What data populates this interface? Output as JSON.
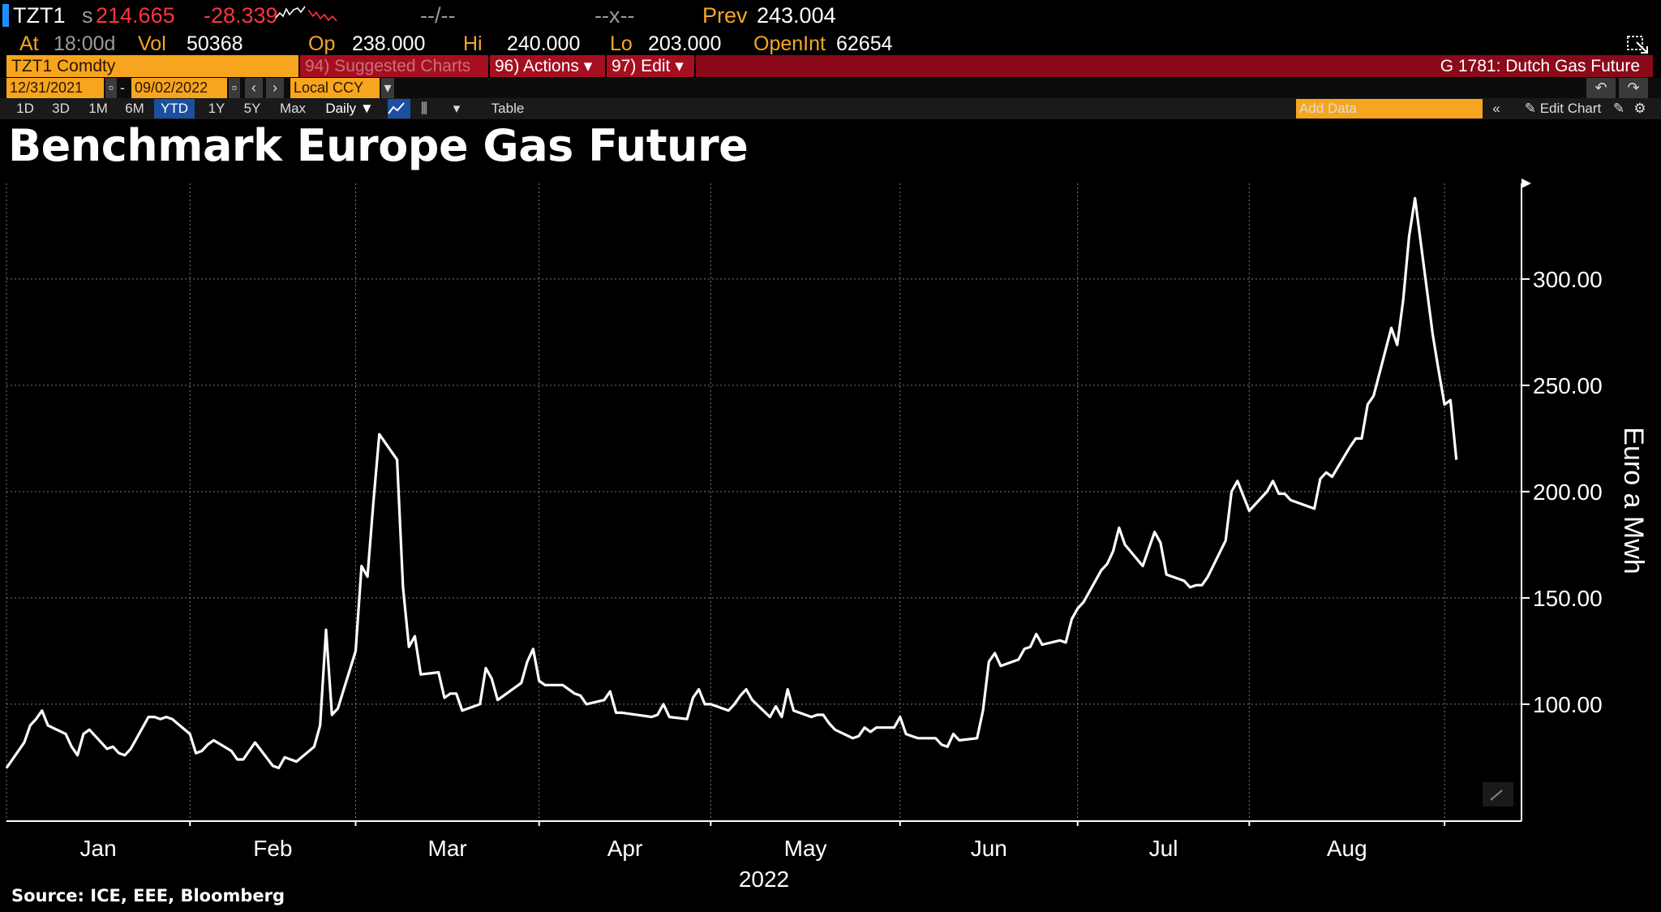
{
  "quote": {
    "ticker": "TZT1",
    "price_prefix": "s",
    "price": "214.665",
    "change": "-28.339",
    "bid_ask": "--/--",
    "size": "--x--",
    "prev_label": "Prev",
    "prev": "243.004",
    "at_label": "At",
    "time": "18:00d",
    "vol_label": "Vol",
    "vol": "50368",
    "op_label": "Op",
    "op": "238.000",
    "hi_label": "Hi",
    "hi": "240.000",
    "lo_label": "Lo",
    "lo": "203.000",
    "oi_label": "OpenInt",
    "oi": "62654"
  },
  "toolbar": {
    "security": "TZT1 Comdty",
    "suggested": "94) Suggested Charts",
    "actions": "96) Actions ▾",
    "edit": "97) Edit ▾",
    "function_title": "G 1781: Dutch Gas Future",
    "start_date": "12/31/2021",
    "date_sep": "-",
    "end_date": "09/02/2022",
    "currency": "Local CCY",
    "periods": [
      "1D",
      "3D",
      "1M",
      "6M",
      "YTD",
      "1Y",
      "5Y",
      "Max"
    ],
    "selected_period": "YTD",
    "frequency": "Daily ▼",
    "table": "Table",
    "add_data_placeholder": "Add Data",
    "edit_chart": "Edit Chart"
  },
  "chart_data": {
    "type": "line",
    "title": "Benchmark Europe Gas Future",
    "ylabel": "Euro a Mwh",
    "xlabel": "2022",
    "source": "Source: ICE, EEE, Bloomberg",
    "ylim": [
      45,
      345
    ],
    "yticks": [
      "100.00",
      "150.00",
      "200.00",
      "250.00",
      "300.00"
    ],
    "ytick_values": [
      100,
      150,
      200,
      250,
      300
    ],
    "month_labels": [
      "Jan",
      "Feb",
      "Mar",
      "Apr",
      "May",
      "Jun",
      "Jul",
      "Aug"
    ],
    "grid": true,
    "series": [
      {
        "color": "#ffffff",
        "x": [
          "2021-12-31",
          "2022-01-03",
          "2022-01-04",
          "2022-01-05",
          "2022-01-06",
          "2022-01-07",
          "2022-01-10",
          "2022-01-11",
          "2022-01-12",
          "2022-01-13",
          "2022-01-14",
          "2022-01-17",
          "2022-01-18",
          "2022-01-19",
          "2022-01-20",
          "2022-01-21",
          "2022-01-24",
          "2022-01-25",
          "2022-01-26",
          "2022-01-27",
          "2022-01-28",
          "2022-01-31",
          "2022-02-01",
          "2022-02-02",
          "2022-02-03",
          "2022-02-04",
          "2022-02-07",
          "2022-02-08",
          "2022-02-09",
          "2022-02-10",
          "2022-02-11",
          "2022-02-14",
          "2022-02-15",
          "2022-02-16",
          "2022-02-17",
          "2022-02-18",
          "2022-02-21",
          "2022-02-22",
          "2022-02-23",
          "2022-02-24",
          "2022-02-25",
          "2022-02-28",
          "2022-03-01",
          "2022-03-02",
          "2022-03-03",
          "2022-03-04",
          "2022-03-07",
          "2022-03-08",
          "2022-03-09",
          "2022-03-10",
          "2022-03-11",
          "2022-03-14",
          "2022-03-15",
          "2022-03-16",
          "2022-03-17",
          "2022-03-18",
          "2022-03-21",
          "2022-03-22",
          "2022-03-23",
          "2022-03-24",
          "2022-03-25",
          "2022-03-28",
          "2022-03-29",
          "2022-03-30",
          "2022-03-31",
          "2022-04-01",
          "2022-04-04",
          "2022-04-05",
          "2022-04-06",
          "2022-04-07",
          "2022-04-08",
          "2022-04-11",
          "2022-04-12",
          "2022-04-13",
          "2022-04-14",
          "2022-04-19",
          "2022-04-20",
          "2022-04-21",
          "2022-04-22",
          "2022-04-25",
          "2022-04-26",
          "2022-04-27",
          "2022-04-28",
          "2022-04-29",
          "2022-05-02",
          "2022-05-03",
          "2022-05-04",
          "2022-05-05",
          "2022-05-06",
          "2022-05-09",
          "2022-05-10",
          "2022-05-11",
          "2022-05-12",
          "2022-05-13",
          "2022-05-16",
          "2022-05-17",
          "2022-05-18",
          "2022-05-19",
          "2022-05-20",
          "2022-05-23",
          "2022-05-24",
          "2022-05-25",
          "2022-05-26",
          "2022-05-27",
          "2022-05-30",
          "2022-05-31",
          "2022-06-01",
          "2022-06-02",
          "2022-06-03",
          "2022-06-06",
          "2022-06-07",
          "2022-06-08",
          "2022-06-09",
          "2022-06-10",
          "2022-06-13",
          "2022-06-14",
          "2022-06-15",
          "2022-06-16",
          "2022-06-17",
          "2022-06-20",
          "2022-06-21",
          "2022-06-22",
          "2022-06-23",
          "2022-06-24",
          "2022-06-27",
          "2022-06-28",
          "2022-06-29",
          "2022-06-30",
          "2022-07-01",
          "2022-07-04",
          "2022-07-05",
          "2022-07-06",
          "2022-07-07",
          "2022-07-08",
          "2022-07-11",
          "2022-07-12",
          "2022-07-13",
          "2022-07-14",
          "2022-07-15",
          "2022-07-18",
          "2022-07-19",
          "2022-07-20",
          "2022-07-21",
          "2022-07-22",
          "2022-07-25",
          "2022-07-26",
          "2022-07-27",
          "2022-07-28",
          "2022-07-29",
          "2022-08-01",
          "2022-08-02",
          "2022-08-03",
          "2022-08-04",
          "2022-08-05",
          "2022-08-08",
          "2022-08-09",
          "2022-08-10",
          "2022-08-11",
          "2022-08-12",
          "2022-08-15",
          "2022-08-16",
          "2022-08-17",
          "2022-08-18",
          "2022-08-19",
          "2022-08-22",
          "2022-08-23",
          "2022-08-24",
          "2022-08-25",
          "2022-08-26",
          "2022-08-29",
          "2022-08-30",
          "2022-08-31",
          "2022-09-01",
          "2022-09-02"
        ],
        "values": [
          70,
          82,
          90,
          93,
          97,
          90,
          86,
          80,
          76,
          86,
          88,
          79,
          80,
          77,
          76,
          79,
          94,
          94,
          93,
          94,
          93,
          86,
          77,
          78,
          81,
          83,
          78,
          74,
          74,
          78,
          82,
          71,
          70,
          75,
          74,
          73,
          80,
          90,
          135,
          95,
          98,
          125,
          165,
          160,
          195,
          227,
          215,
          155,
          127,
          132,
          114,
          115,
          103,
          105,
          105,
          97,
          100,
          117,
          112,
          102,
          104,
          110,
          120,
          126,
          111,
          109,
          109,
          107,
          105,
          104,
          100,
          102,
          106,
          96,
          96,
          94,
          95,
          100,
          94,
          93,
          103,
          107,
          100,
          100,
          97,
          100,
          104,
          107,
          102,
          94,
          99,
          94,
          107,
          97,
          94,
          95,
          95,
          91,
          88,
          84,
          85,
          89,
          87,
          89,
          89,
          94,
          86,
          85,
          84,
          84,
          81,
          80,
          86,
          83,
          84,
          97,
          120,
          124,
          118,
          121,
          126,
          127,
          133,
          128,
          130,
          129,
          140,
          145,
          148,
          163,
          166,
          172,
          183,
          175,
          165,
          173,
          181,
          176,
          161,
          158,
          155,
          156,
          156,
          160,
          177,
          200,
          205,
          198,
          191,
          200,
          205,
          199,
          199,
          196,
          193,
          192,
          206,
          209,
          207,
          221,
          225,
          225,
          241,
          245,
          277,
          269,
          290,
          320,
          338,
          274,
          257,
          241,
          243,
          215
        ]
      }
    ]
  }
}
